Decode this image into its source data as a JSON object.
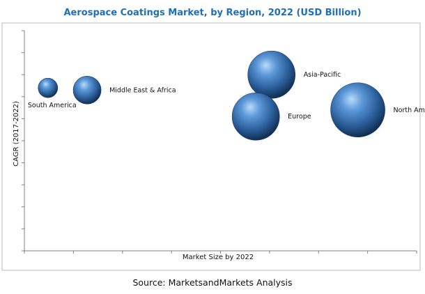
{
  "chart_data": {
    "type": "scatter",
    "title": "Aerospace Coatings Market, by Region, 2022 (USD Billion)",
    "xlabel": "Market Size by 2022",
    "ylabel": "CAGR (2017-2022)",
    "xlim": [
      0,
      100
    ],
    "ylim": [
      0,
      100
    ],
    "grid": false,
    "colors": {
      "title": "#1f6fb5",
      "bubble": "#3d76b8",
      "frame": "#b9b9b9",
      "axis": "#7f7f7f"
    },
    "series": [
      {
        "label": "South America",
        "x": 6,
        "y": 74,
        "size": 14,
        "label_pos": "below"
      },
      {
        "label": "Middle East & Africa",
        "x": 16,
        "y": 73,
        "size": 20,
        "label_pos": "right"
      },
      {
        "label": "Asia-Pacific",
        "x": 63,
        "y": 80,
        "size": 34,
        "label_pos": "right"
      },
      {
        "label": "Europe",
        "x": 59,
        "y": 61,
        "size": 34,
        "label_pos": "right"
      },
      {
        "label": "North America",
        "x": 85,
        "y": 64,
        "size": 39,
        "label_pos": "right"
      }
    ]
  },
  "source": "Source: MarketsandMarkets Analysis"
}
